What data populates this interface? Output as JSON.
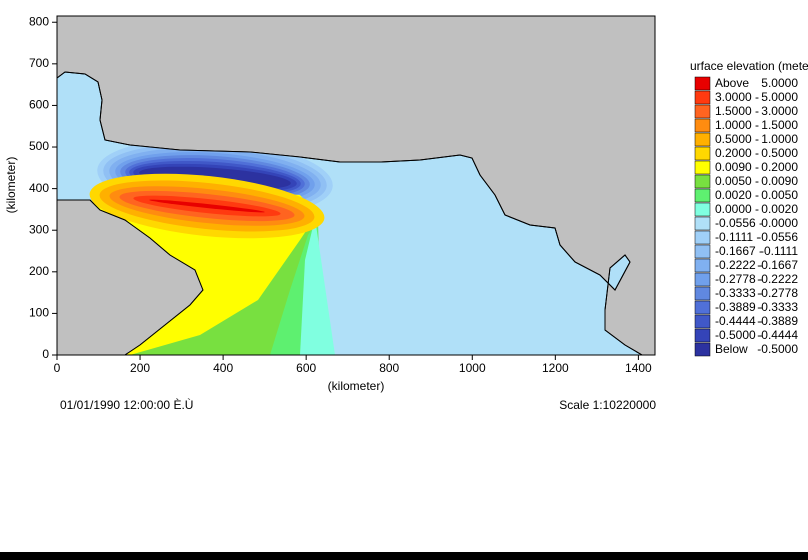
{
  "chart_data": {
    "type": "contour",
    "xlabel": "(kilometer)",
    "ylabel": "(kilometer)",
    "xlim": [
      0,
      1440
    ],
    "ylim": [
      0,
      815
    ],
    "xticks": [
      0,
      200,
      400,
      600,
      800,
      1000,
      1200,
      1400
    ],
    "yticks": [
      0,
      100,
      200,
      300,
      400,
      500,
      600,
      700,
      800
    ],
    "land_color": "#c0c0c0",
    "water_color": "#b0e0f8",
    "legend_title": "urface elevation (meter)",
    "legend": [
      {
        "lower": "Above",
        "upper": "5.0000",
        "color": "#e80000"
      },
      {
        "lower": "3.0000 -",
        "upper": "5.0000",
        "color": "#ff3a10"
      },
      {
        "lower": "1.5000 -",
        "upper": "3.0000",
        "color": "#ff6420"
      },
      {
        "lower": "1.0000 -",
        "upper": "1.5000",
        "color": "#ff8c10"
      },
      {
        "lower": "0.5000 -",
        "upper": "1.0000",
        "color": "#ffb000"
      },
      {
        "lower": "0.2000 -",
        "upper": "0.5000",
        "color": "#ffd800"
      },
      {
        "lower": "0.0090 -",
        "upper": "0.2000",
        "color": "#ffff00"
      },
      {
        "lower": "0.0050 -",
        "upper": "0.0090",
        "color": "#78e040"
      },
      {
        "lower": "0.0020 -",
        "upper": "0.0050",
        "color": "#5ef070"
      },
      {
        "lower": "0.0000 -",
        "upper": "0.0020",
        "color": "#80ffe0"
      },
      {
        "lower": "-0.0556 -",
        "upper": "0.0000",
        "color": "#b0e0f8"
      },
      {
        "lower": "-0.1111 -",
        "upper": "-0.0556",
        "color": "#a0d0f8"
      },
      {
        "lower": "-0.1667 -",
        "upper": "-0.1111",
        "color": "#90c0f4"
      },
      {
        "lower": "-0.2222 -",
        "upper": "-0.1667",
        "color": "#80b0f0"
      },
      {
        "lower": "-0.2778 -",
        "upper": "-0.2222",
        "color": "#70a0ec"
      },
      {
        "lower": "-0.3333 -",
        "upper": "-0.2778",
        "color": "#6088e0"
      },
      {
        "lower": "-0.3889 -",
        "upper": "-0.3333",
        "color": "#5070d8"
      },
      {
        "lower": "-0.4444 -",
        "upper": "-0.3889",
        "color": "#4058c8"
      },
      {
        "lower": "-0.5000 -",
        "upper": "-0.4444",
        "color": "#3444b8"
      },
      {
        "lower": "Below",
        "upper": "-0.5000",
        "color": "#2c32a0"
      }
    ],
    "timestamp": "01/01/1990 12:00:00 È.Ù",
    "scale": "Scale 1:10220000"
  }
}
